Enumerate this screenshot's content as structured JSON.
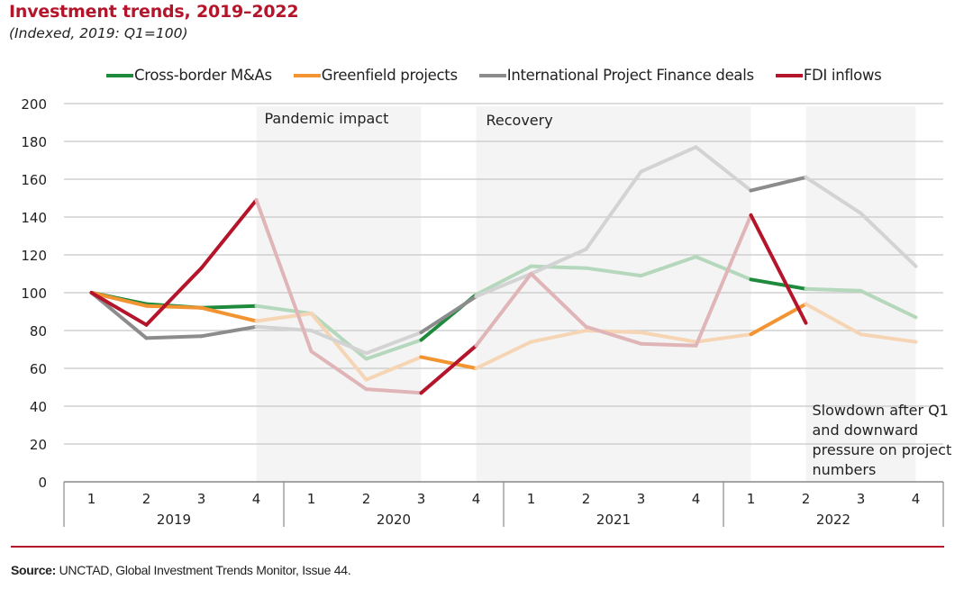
{
  "header": {
    "title": "Investment trends, 2019–2022",
    "subtitle": "(Indexed, 2019: Q1=100)"
  },
  "footer": {
    "source_label": "Source:",
    "source_text": " UNCTAD, Global Investment Trends Monitor, Issue 44."
  },
  "chart_data": {
    "type": "line",
    "title": "Investment trends, 2019–2022",
    "subtitle": "(Indexed, 2019: Q1=100)",
    "xlabel": "",
    "ylabel": "",
    "ylim": [
      0,
      200
    ],
    "yticks": [
      0,
      20,
      40,
      60,
      80,
      100,
      120,
      140,
      160,
      180,
      200
    ],
    "grid": true,
    "legend_position": "top",
    "x_quarters": [
      "1",
      "2",
      "3",
      "4",
      "1",
      "2",
      "3",
      "4",
      "1",
      "2",
      "3",
      "4",
      "1",
      "2",
      "3",
      "4"
    ],
    "x_years": [
      "2019",
      "2020",
      "2021",
      "2022"
    ],
    "shaded_periods": [
      {
        "label": "Pandemic impact",
        "from_index": 3,
        "to_index": 6
      },
      {
        "label": "Recovery",
        "from_index": 7,
        "to_index": 12
      },
      {
        "label": "Slowdown after Q1 and downward pressure on project numbers",
        "from_index": 13,
        "to_index": 15
      }
    ],
    "series": [
      {
        "name": "Cross-border M&As",
        "color": "#1e8a3c",
        "faded_color": "#b5d8bd",
        "values": [
          100,
          94,
          92,
          93,
          89,
          65,
          75,
          99,
          114,
          113,
          109,
          119,
          107,
          102,
          101,
          87
        ]
      },
      {
        "name": "Greenfield projects",
        "color": "#f39433",
        "faded_color": "#f6d5b5",
        "values": [
          100,
          93,
          92,
          85,
          89,
          54,
          66,
          60,
          74,
          80,
          79,
          74,
          78,
          94,
          78,
          74
        ]
      },
      {
        "name": "International Project Finance deals",
        "color": "#8c8c8c",
        "faded_color": "#d3d3d3",
        "values": [
          100,
          76,
          77,
          82,
          80,
          68,
          79,
          98,
          110,
          123,
          164,
          177,
          154,
          161,
          142,
          114
        ]
      },
      {
        "name": "FDI inflows",
        "color": "#b5152b",
        "faded_color": "#e0b5b8",
        "values": [
          100,
          83,
          113,
          149,
          69,
          49,
          47,
          72,
          110,
          82,
          73,
          72,
          141,
          84,
          null,
          null
        ]
      }
    ],
    "annotations": [
      {
        "text": "Pandemic impact",
        "period_index": 0
      },
      {
        "text": "Recovery",
        "period_index": 1
      },
      {
        "text": "Slowdown after Q1",
        "period_index": 2
      },
      {
        "text": "and downward",
        "period_index": 2
      },
      {
        "text": "pressure on project",
        "period_index": 2
      },
      {
        "text": "numbers",
        "period_index": 2
      }
    ]
  }
}
